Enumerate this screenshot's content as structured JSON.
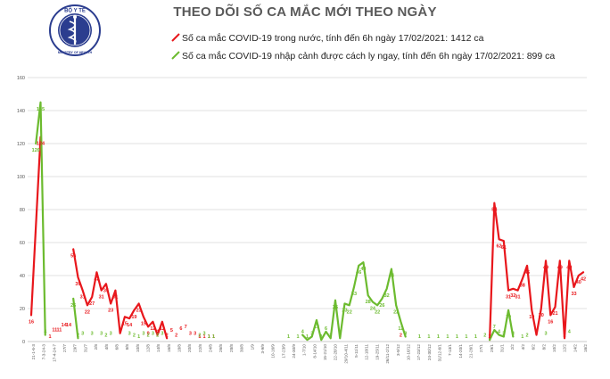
{
  "header": {
    "title": "THEO DÕI SỐ CA MẮC MỚI THEO NGÀY",
    "logo_top_text": "BỘ Y TẾ",
    "logo_bottom_text": "MINISTRY OF HEALTH"
  },
  "colors": {
    "domestic": "#e8171c",
    "imported": "#6cbb2f",
    "grid": "#d9d9d9",
    "axis_text": "#595959"
  },
  "chart_data": {
    "type": "line",
    "title": "THEO DÕI SỐ CA MẮC MỚI THEO NGÀY",
    "xlabel": "",
    "ylabel": "",
    "ylim": [
      0,
      160
    ],
    "yticks": [
      0,
      20,
      40,
      60,
      80,
      100,
      120,
      140,
      160
    ],
    "grid": true,
    "legend_position": "top",
    "x_tick_labels": [
      "21-1-6-3",
      "7-3-24-3",
      "17-4-24-7",
      "27/7",
      "29/7",
      "31/7",
      "2/8",
      "4/8",
      "6/8",
      "8/8",
      "10/8",
      "12/8",
      "14/8",
      "16/8",
      "18/8",
      "20/8",
      "22/8",
      "24/8",
      "26/8",
      "28/8",
      "30/8",
      "1/9",
      "3-9/9",
      "10-16/9",
      "17-23/9",
      "24-30/9",
      "1-7/10",
      "8-14/10",
      "15-21/10",
      "22-28/10",
      "29/10-4/11",
      "5-11/11",
      "12-18/11",
      "19-25/11",
      "26/11-2/12",
      "3-9/12",
      "10-16/12",
      "17-23/12",
      "24-30/12",
      "31/12-6/1",
      "7-13/1",
      "14-20/1",
      "21-26/1",
      "27/1",
      "29/1",
      "31/1",
      "2/2",
      "4/2",
      "6/2",
      "8/2",
      "10/2",
      "12/2",
      "14/2",
      "16/2"
    ],
    "series": [
      {
        "name": "Số ca mắc COVID-19 trong nước, tính đến 6h ngày 17/02/2021: 1412 ca",
        "segments": [
          [
            [
              0,
              16
            ],
            [
              2,
              124
            ]
          ],
          [
            [
              9,
              56
            ],
            [
              10,
              39
            ],
            [
              11,
              31
            ],
            [
              12,
              22
            ],
            [
              13,
              27
            ],
            [
              14,
              42
            ],
            [
              15,
              31
            ],
            [
              16,
              35
            ],
            [
              17,
              23
            ],
            [
              18,
              31
            ],
            [
              19,
              5
            ],
            [
              20,
              15
            ],
            [
              21,
              14
            ],
            [
              22,
              19
            ],
            [
              23,
              23
            ],
            [
              24,
              15
            ],
            [
              25,
              9
            ],
            [
              26,
              12
            ],
            [
              27,
              4
            ],
            [
              28,
              12
            ],
            [
              29,
              2
            ]
          ],
          [
            [
              98,
              1
            ],
            [
              99,
              84
            ],
            [
              100,
              62
            ],
            [
              101,
              61
            ],
            [
              102,
              31
            ],
            [
              103,
              32
            ],
            [
              104,
              31
            ],
            [
              105,
              38
            ],
            [
              106,
              46
            ],
            [
              107,
              19
            ],
            [
              108,
              4
            ],
            [
              109,
              20
            ],
            [
              110,
              49
            ],
            [
              111,
              16
            ],
            [
              112,
              21
            ],
            [
              113,
              49
            ],
            [
              114,
              2
            ],
            [
              115,
              49
            ],
            [
              116,
              33
            ],
            [
              117,
              40
            ],
            [
              118,
              42
            ]
          ]
        ],
        "labels": [
          [
            0,
            16
          ],
          [
            2,
            124
          ],
          [
            4,
            1
          ],
          [
            5,
            11
          ],
          [
            6,
            11
          ],
          [
            7,
            14
          ],
          [
            8,
            14
          ],
          [
            9,
            56
          ],
          [
            10,
            39
          ],
          [
            11,
            31
          ],
          [
            12,
            22
          ],
          [
            13,
            27
          ],
          [
            14,
            42
          ],
          [
            15,
            31
          ],
          [
            16,
            35
          ],
          [
            17,
            23
          ],
          [
            18,
            31
          ],
          [
            19,
            5
          ],
          [
            20,
            15
          ],
          [
            21,
            14
          ],
          [
            22,
            19
          ],
          [
            23,
            23
          ],
          [
            24,
            15
          ],
          [
            25,
            9
          ],
          [
            26,
            12
          ],
          [
            27,
            4
          ],
          [
            28,
            12
          ],
          [
            29,
            2
          ],
          [
            30,
            5
          ],
          [
            31,
            2
          ],
          [
            32,
            6
          ],
          [
            33,
            7
          ],
          [
            34,
            3
          ],
          [
            35,
            3
          ],
          [
            36,
            1
          ],
          [
            37,
            1
          ],
          [
            38,
            1
          ],
          [
            39,
            1
          ],
          [
            79,
            2
          ],
          [
            98,
            1
          ],
          [
            99,
            84
          ],
          [
            100,
            62
          ],
          [
            101,
            61
          ],
          [
            102,
            31
          ],
          [
            103,
            32
          ],
          [
            104,
            31
          ],
          [
            105,
            38
          ],
          [
            106,
            46
          ],
          [
            107,
            19
          ],
          [
            108,
            4
          ],
          [
            109,
            20
          ],
          [
            110,
            49
          ],
          [
            111,
            16
          ],
          [
            112,
            21
          ],
          [
            113,
            49
          ],
          [
            114,
            2
          ],
          [
            115,
            49
          ],
          [
            116,
            33
          ],
          [
            117,
            40
          ],
          [
            118,
            42
          ]
        ]
      },
      {
        "name": "Số ca mắc COVID-19 nhập cảnh được cách ly ngay, tính đến 6h ngày 17/02/2021: 899 ca",
        "segments": [
          [
            [
              1,
              120
            ],
            [
              2,
              145
            ],
            [
              3,
              4
            ]
          ],
          [
            [
              9,
              26
            ],
            [
              10,
              2
            ]
          ],
          [
            [
              58,
              4
            ],
            [
              59,
              1
            ],
            [
              60,
              3
            ],
            [
              61,
              13
            ],
            [
              62,
              1
            ],
            [
              63,
              6
            ],
            [
              64,
              2
            ],
            [
              65,
              25
            ],
            [
              66,
              2
            ],
            [
              67,
              23
            ],
            [
              68,
              22
            ],
            [
              69,
              33
            ],
            [
              70,
              46
            ],
            [
              71,
              48
            ],
            [
              72,
              28
            ],
            [
              73,
              24
            ],
            [
              74,
              22
            ],
            [
              75,
              26
            ],
            [
              76,
              32
            ],
            [
              77,
              44
            ],
            [
              78,
              22
            ],
            [
              79,
              12
            ],
            [
              80,
              3
            ]
          ],
          [
            [
              98,
              1
            ],
            [
              99,
              7
            ],
            [
              100,
              4
            ],
            [
              101,
              3
            ],
            [
              102,
              19
            ],
            [
              103,
              3
            ]
          ]
        ],
        "labels": [
          [
            1,
            120
          ],
          [
            2,
            145
          ],
          [
            3,
            4
          ],
          [
            9,
            26
          ],
          [
            10,
            2
          ],
          [
            11,
            3
          ],
          [
            13,
            3
          ],
          [
            15,
            3
          ],
          [
            16,
            2
          ],
          [
            17,
            3
          ],
          [
            21,
            3
          ],
          [
            22,
            2
          ],
          [
            23,
            1
          ],
          [
            24,
            3
          ],
          [
            25,
            2
          ],
          [
            26,
            3
          ],
          [
            27,
            2
          ],
          [
            28,
            3
          ],
          [
            36,
            2
          ],
          [
            37,
            3
          ],
          [
            38,
            1
          ],
          [
            39,
            1
          ],
          [
            55,
            1
          ],
          [
            57,
            1
          ],
          [
            58,
            4
          ],
          [
            59,
            1
          ],
          [
            60,
            3
          ],
          [
            61,
            13
          ],
          [
            62,
            1
          ],
          [
            63,
            6
          ],
          [
            64,
            2
          ],
          [
            65,
            25
          ],
          [
            66,
            2
          ],
          [
            67,
            23
          ],
          [
            68,
            22
          ],
          [
            69,
            33
          ],
          [
            70,
            46
          ],
          [
            71,
            48
          ],
          [
            72,
            28
          ],
          [
            73,
            24
          ],
          [
            74,
            22
          ],
          [
            75,
            26
          ],
          [
            76,
            32
          ],
          [
            77,
            44
          ],
          [
            78,
            22
          ],
          [
            79,
            12
          ],
          [
            80,
            3
          ],
          [
            83,
            1
          ],
          [
            85,
            1
          ],
          [
            87,
            1
          ],
          [
            89,
            1
          ],
          [
            91,
            1
          ],
          [
            93,
            1
          ],
          [
            95,
            1
          ],
          [
            97,
            2
          ],
          [
            99,
            7
          ],
          [
            100,
            4
          ],
          [
            101,
            3
          ],
          [
            102,
            19
          ],
          [
            103,
            3
          ],
          [
            105,
            1
          ],
          [
            106,
            2
          ],
          [
            110,
            3
          ],
          [
            115,
            4
          ]
        ]
      }
    ]
  }
}
